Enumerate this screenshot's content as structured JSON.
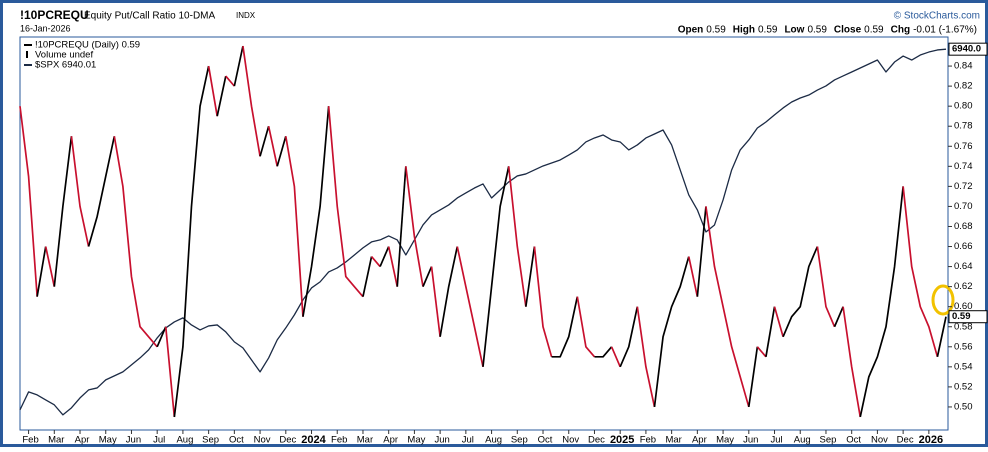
{
  "chart_data": {
    "type": "line",
    "symbol": "!10PCREQU",
    "title": "Equity Put/Call Ratio 10-DMA",
    "exchange": "INDX",
    "date": "16-Jan-2026",
    "source": "© StockCharts.com",
    "quote": [
      {
        "label": "Open",
        "value": 0.59
      },
      {
        "label": "High",
        "value": 0.59
      },
      {
        "label": "Low",
        "value": 0.59
      },
      {
        "label": "Close",
        "value": 0.59
      },
      {
        "label": "Chg",
        "value": "-0.01 (-1.67%)"
      }
    ],
    "legend_extra": "Volume undef",
    "categories": [
      null,
      "Feb",
      null,
      null,
      "Mar",
      null,
      null,
      "Apr",
      null,
      null,
      "May",
      null,
      null,
      "Jun",
      null,
      null,
      "Jul",
      null,
      null,
      "Aug",
      null,
      null,
      "Sep",
      null,
      null,
      "Oct",
      null,
      null,
      "Nov",
      null,
      null,
      "Dec",
      null,
      null,
      "2024",
      null,
      null,
      "Feb",
      null,
      null,
      "Mar",
      null,
      null,
      "Apr",
      null,
      null,
      "May",
      null,
      null,
      "Jun",
      null,
      null,
      "Jul",
      null,
      null,
      "Aug",
      null,
      null,
      "Sep",
      null,
      null,
      "Oct",
      null,
      null,
      "Nov",
      null,
      null,
      "Dec",
      null,
      null,
      "2025",
      null,
      null,
      "Feb",
      null,
      null,
      "Mar",
      null,
      null,
      "Apr",
      null,
      null,
      "May",
      null,
      null,
      "Jun",
      null,
      null,
      "Jul",
      null,
      null,
      "Aug",
      null,
      null,
      "Sep",
      null,
      null,
      "Oct",
      null,
      null,
      "Nov",
      null,
      null,
      "Dec",
      null,
      null,
      "2026",
      null,
      null
    ],
    "series": [
      {
        "name": "!10PCREQU (Daily) 0.59",
        "color": "#000000",
        "falling_color": "#c8102e",
        "last_label": "0.59",
        "values": [
          0.8,
          0.73,
          0.61,
          0.66,
          0.62,
          0.7,
          0.77,
          0.7,
          0.66,
          0.69,
          0.73,
          0.77,
          0.72,
          0.63,
          0.58,
          0.57,
          0.56,
          0.58,
          0.49,
          0.56,
          0.7,
          0.8,
          0.84,
          0.79,
          0.83,
          0.82,
          0.86,
          0.8,
          0.75,
          0.78,
          0.74,
          0.77,
          0.72,
          0.59,
          0.64,
          0.7,
          0.8,
          0.7,
          0.63,
          0.62,
          0.61,
          0.65,
          0.64,
          0.66,
          0.62,
          0.74,
          0.67,
          0.62,
          0.64,
          0.57,
          0.62,
          0.66,
          0.62,
          0.58,
          0.54,
          0.62,
          0.7,
          0.74,
          0.66,
          0.6,
          0.66,
          0.58,
          0.55,
          0.55,
          0.57,
          0.61,
          0.56,
          0.55,
          0.55,
          0.56,
          0.54,
          0.56,
          0.6,
          0.54,
          0.5,
          0.57,
          0.6,
          0.62,
          0.65,
          0.61,
          0.7,
          0.64,
          0.6,
          0.56,
          0.53,
          0.5,
          0.56,
          0.55,
          0.6,
          0.57,
          0.59,
          0.6,
          0.64,
          0.66,
          0.6,
          0.58,
          0.6,
          0.54,
          0.49,
          0.53,
          0.55,
          0.58,
          0.64,
          0.72,
          0.64,
          0.6,
          0.58,
          0.55,
          0.59
        ]
      },
      {
        "name": "$SPX 6940.01",
        "color": "#1c2b45",
        "axis": "y2",
        "last_label": "6940.0",
        "values": [
          3682,
          3844,
          3817,
          3772,
          3727,
          3637,
          3700,
          3790,
          3862,
          3880,
          3953,
          3989,
          4025,
          4088,
          4151,
          4224,
          4332,
          4422,
          4476,
          4513,
          4449,
          4404,
          4440,
          4449,
          4386,
          4296,
          4242,
          4133,
          4025,
          4151,
          4314,
          4422,
          4540,
          4675,
          4783,
          4838,
          4928,
          4964,
          5018,
          5081,
          5145,
          5199,
          5217,
          5253,
          5217,
          5081,
          5217,
          5352,
          5443,
          5488,
          5533,
          5596,
          5641,
          5686,
          5723,
          5596,
          5668,
          5741,
          5795,
          5813,
          5849,
          5885,
          5912,
          5939,
          5984,
          6030,
          6102,
          6138,
          6165,
          6120,
          6102,
          6030,
          6075,
          6138,
          6174,
          6210,
          6075,
          5849,
          5623,
          5488,
          5289,
          5352,
          5578,
          5849,
          6030,
          6120,
          6228,
          6282,
          6346,
          6409,
          6463,
          6499,
          6526,
          6571,
          6608,
          6662,
          6698,
          6734,
          6770,
          6806,
          6842,
          6734,
          6824,
          6878,
          6842,
          6887,
          6914,
          6933,
          6940.01
        ]
      }
    ],
    "ylim": [
      0.477,
      0.869
    ],
    "yticks": [
      {
        "value": 0.5,
        "label": "0.50"
      },
      0.52,
      0.54,
      0.56,
      0.58,
      {
        "value": 0.6,
        "label": "0.60"
      },
      0.62,
      0.64,
      0.66,
      0.68,
      {
        "value": 0.7,
        "label": "0.70"
      },
      0.72,
      0.74,
      0.76,
      0.78,
      {
        "value": 0.8,
        "label": "0.80"
      },
      0.82,
      0.84
    ],
    "y2lim": [
      3500,
      7050
    ],
    "grid": false
  }
}
